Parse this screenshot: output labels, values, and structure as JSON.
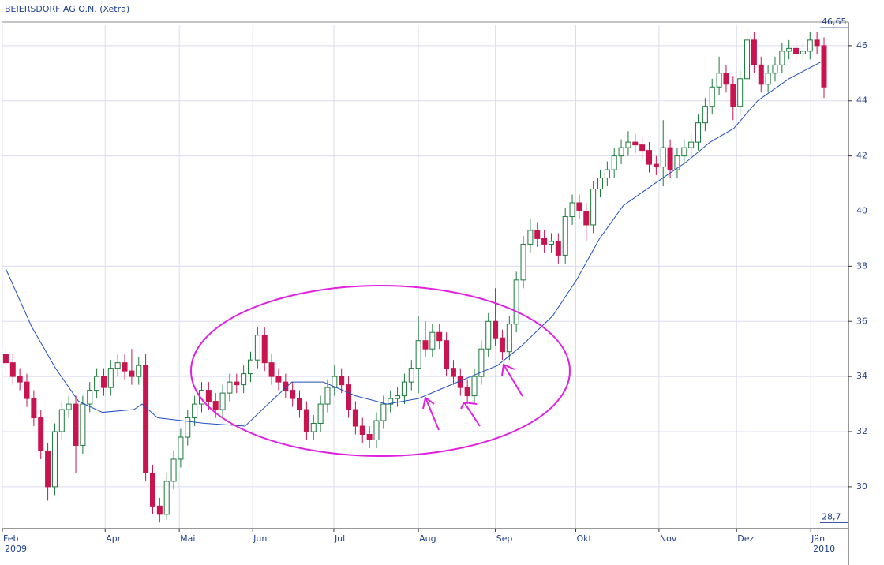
{
  "chart_data": {
    "type": "candlestick",
    "title": "BEIERSDORF AG O.N. (Xetra)",
    "x": [
      0,
      1,
      2,
      3,
      4,
      5,
      6,
      7,
      8,
      9,
      10,
      11,
      12,
      13,
      14,
      15,
      16,
      17,
      18,
      19,
      20,
      21,
      22,
      23,
      24,
      25,
      26,
      27,
      28,
      29,
      30,
      31,
      32,
      33,
      34,
      35,
      36,
      37,
      38,
      39,
      40,
      41,
      42,
      43,
      44,
      45,
      46,
      47,
      48,
      49,
      50,
      51,
      52,
      53,
      54,
      55,
      56,
      57,
      58,
      59,
      60,
      61,
      62,
      63,
      64,
      65,
      66,
      67,
      68,
      69,
      70,
      71,
      72,
      73,
      74,
      75,
      76,
      77,
      78,
      79,
      80,
      81,
      82,
      83,
      84,
      85,
      86,
      87,
      88,
      89,
      90,
      91,
      92,
      93,
      94,
      95,
      96,
      97,
      98,
      99,
      100,
      101,
      102,
      103,
      104,
      105,
      106,
      107,
      108,
      109,
      110,
      111,
      112,
      113,
      114,
      115,
      116,
      117
    ],
    "open": [
      34.8,
      34.5,
      34.0,
      33.8,
      33.2,
      32.5,
      31.3,
      30.0,
      32.0,
      32.8,
      33.0,
      31.5,
      33.0,
      33.5,
      34.0,
      33.6,
      34.3,
      34.5,
      34.2,
      34.0,
      34.4,
      30.5,
      29.3,
      29.0,
      30.2,
      31.0,
      31.8,
      32.5,
      33.0,
      33.5,
      33.1,
      32.8,
      33.4,
      33.8,
      33.7,
      34.1,
      34.6,
      35.5,
      34.5,
      34.0,
      33.8,
      33.5,
      33.2,
      32.8,
      32.0,
      32.3,
      33.0,
      33.6,
      34.0,
      33.7,
      32.8,
      32.2,
      31.9,
      31.7,
      32.4,
      33.0,
      33.2,
      33.3,
      33.8,
      34.3,
      35.3,
      35.0,
      35.6,
      35.3,
      34.3,
      34.0,
      33.6,
      33.3,
      34.0,
      35.0,
      36.0,
      35.4,
      34.9,
      35.9,
      37.5,
      38.8,
      39.3,
      39.0,
      38.8,
      38.9,
      38.4,
      39.8,
      40.3,
      40.0,
      39.5,
      40.8,
      41.2,
      41.5,
      42.0,
      42.3,
      42.5,
      42.4,
      42.2,
      41.7,
      41.6,
      42.3,
      41.5,
      42.0,
      42.3,
      42.5,
      43.2,
      43.8,
      44.5,
      45.0,
      44.6,
      43.8,
      44.8,
      46.2,
      45.3,
      44.6,
      45.0,
      45.3,
      45.8,
      45.9,
      45.7,
      45.8,
      46.2,
      46.0
    ],
    "high": [
      35.1,
      34.8,
      34.3,
      34.1,
      33.5,
      32.8,
      31.6,
      32.3,
      33.1,
      33.3,
      33.3,
      33.3,
      33.8,
      34.3,
      34.3,
      34.6,
      34.8,
      34.8,
      35.0,
      34.7,
      34.8,
      30.8,
      29.6,
      30.5,
      31.3,
      32.1,
      32.8,
      33.3,
      33.8,
      33.8,
      33.4,
      33.7,
      34.1,
      34.1,
      34.4,
      34.9,
      35.8,
      35.8,
      34.8,
      34.3,
      34.1,
      33.8,
      33.5,
      33.1,
      32.6,
      33.3,
      33.9,
      34.4,
      34.3,
      34.0,
      33.1,
      32.5,
      32.2,
      32.7,
      33.3,
      33.5,
      33.6,
      34.1,
      34.6,
      36.2,
      36.0,
      35.9,
      35.9,
      35.6,
      34.6,
      34.3,
      33.9,
      34.3,
      35.3,
      36.3,
      37.2,
      35.7,
      36.2,
      37.8,
      39.1,
      39.7,
      39.6,
      39.3,
      39.2,
      39.2,
      40.1,
      40.6,
      40.6,
      40.3,
      41.1,
      41.5,
      41.8,
      42.3,
      42.6,
      42.9,
      42.8,
      42.7,
      42.5,
      42.0,
      43.3,
      42.6,
      42.3,
      42.6,
      42.8,
      43.5,
      44.1,
      44.8,
      45.6,
      45.3,
      44.9,
      45.1,
      46.65,
      46.5,
      45.6,
      45.3,
      45.6,
      46.1,
      46.2,
      46.2,
      46.1,
      46.5,
      46.5,
      46.3
    ],
    "low": [
      34.2,
      33.7,
      33.5,
      32.9,
      32.2,
      31.0,
      29.5,
      29.7,
      31.7,
      32.5,
      30.5,
      31.2,
      32.7,
      33.2,
      33.3,
      33.3,
      34.0,
      33.9,
      33.7,
      33.7,
      30.2,
      29.0,
      28.7,
      28.8,
      29.9,
      30.7,
      31.5,
      32.2,
      32.7,
      32.8,
      32.5,
      32.5,
      33.1,
      33.4,
      33.4,
      33.8,
      34.3,
      34.2,
      33.7,
      33.5,
      33.2,
      32.9,
      32.5,
      31.7,
      31.7,
      32.0,
      32.7,
      33.3,
      33.4,
      32.5,
      31.9,
      31.6,
      31.4,
      31.4,
      32.1,
      32.7,
      32.9,
      33.0,
      33.5,
      33.4,
      34.7,
      34.7,
      35.0,
      34.0,
      33.7,
      33.3,
      33.0,
      33.0,
      33.7,
      34.7,
      35.1,
      34.6,
      34.6,
      35.6,
      37.2,
      38.5,
      38.7,
      38.5,
      38.5,
      38.1,
      38.1,
      39.5,
      39.7,
      38.9,
      39.2,
      40.5,
      40.9,
      41.2,
      41.7,
      42.0,
      42.1,
      41.9,
      41.4,
      41.3,
      40.9,
      41.2,
      41.2,
      41.7,
      42.0,
      42.2,
      42.9,
      43.5,
      44.2,
      44.3,
      43.3,
      43.5,
      44.5,
      45.0,
      44.3,
      44.3,
      44.7,
      45.0,
      45.5,
      45.4,
      45.4,
      45.5,
      45.7,
      44.1
    ],
    "close": [
      34.5,
      34.0,
      33.8,
      33.2,
      32.5,
      31.3,
      30.0,
      32.0,
      32.8,
      33.0,
      31.5,
      33.0,
      33.5,
      34.0,
      33.6,
      34.3,
      34.5,
      34.2,
      34.0,
      34.4,
      30.5,
      29.3,
      29.0,
      30.2,
      31.0,
      31.8,
      32.5,
      33.0,
      33.5,
      33.1,
      32.8,
      33.4,
      33.8,
      33.7,
      34.1,
      34.6,
      35.5,
      34.5,
      34.0,
      33.8,
      33.5,
      33.2,
      32.8,
      32.0,
      32.3,
      33.0,
      33.6,
      34.0,
      33.7,
      32.8,
      32.2,
      31.9,
      31.7,
      32.4,
      33.0,
      33.2,
      33.3,
      33.8,
      34.3,
      35.3,
      35.0,
      35.6,
      35.3,
      34.3,
      34.0,
      33.6,
      33.3,
      34.0,
      35.0,
      36.0,
      35.4,
      34.9,
      35.9,
      37.5,
      38.8,
      39.3,
      39.0,
      38.8,
      38.9,
      38.4,
      39.8,
      40.3,
      40.0,
      39.5,
      40.8,
      41.2,
      41.5,
      42.0,
      42.3,
      42.5,
      42.4,
      42.2,
      41.7,
      41.6,
      42.3,
      41.5,
      42.0,
      42.3,
      42.5,
      43.2,
      43.8,
      44.5,
      45.0,
      44.6,
      43.8,
      44.8,
      46.2,
      45.3,
      44.6,
      45.0,
      45.3,
      45.8,
      45.9,
      45.7,
      45.8,
      46.2,
      46.0,
      44.5
    ],
    "color_up": "#1a7a3a",
    "color_down": "#c8144f",
    "overlay": {
      "type": "line",
      "color": "#1f4fbf",
      "x": [
        0,
        3.7,
        7.1,
        10.4,
        13.8,
        18.3,
        19.5,
        21.7,
        25.1,
        28.5,
        34.2,
        37.5,
        40.9,
        45.4,
        50,
        54.5,
        59,
        64.6,
        70.3,
        73.7,
        78.2,
        81.6,
        84.9,
        88.3,
        92.8,
        97.4,
        100.7,
        104.1,
        107.5,
        112,
        116.5
      ],
      "values": [
        37.9,
        35.8,
        34.3,
        33.1,
        32.7,
        32.8,
        33.0,
        32.5,
        32.4,
        32.3,
        32.2,
        33.0,
        33.8,
        33.8,
        33.3,
        33.0,
        33.2,
        33.8,
        34.4,
        35.1,
        36.2,
        37.5,
        39.0,
        40.2,
        41.0,
        41.8,
        42.5,
        43.0,
        44.0,
        44.8,
        45.4
      ]
    },
    "xlim": [
      -0.5,
      120.5
    ],
    "ylim": [
      28.48,
      46.74
    ],
    "yticks": [
      30,
      32,
      34,
      36,
      38,
      40,
      42,
      44,
      46
    ],
    "xticks": [
      {
        "value": -0.5,
        "label": "Feb"
      },
      {
        "value": 14.2,
        "label": "Apr"
      },
      {
        "value": 24.8,
        "label": "Mai"
      },
      {
        "value": 35.3,
        "label": "Jun"
      },
      {
        "value": 46.9,
        "label": "Jul"
      },
      {
        "value": 59,
        "label": "Aug"
      },
      {
        "value": 70,
        "label": "Sep"
      },
      {
        "value": 81.5,
        "label": "Okt"
      },
      {
        "value": 93.4,
        "label": "Nov"
      },
      {
        "value": 104.5,
        "label": "Dez"
      },
      {
        "value": 115.1,
        "label": "Jän"
      }
    ],
    "year_labels": [
      {
        "value": -0.5,
        "label": "2009"
      },
      {
        "value": 115.1,
        "label": "2010"
      }
    ],
    "extremes": [
      {
        "value": 46.65,
        "label": "46,65"
      },
      {
        "value": 28.7,
        "label": "28,7"
      }
    ],
    "grid": true
  }
}
